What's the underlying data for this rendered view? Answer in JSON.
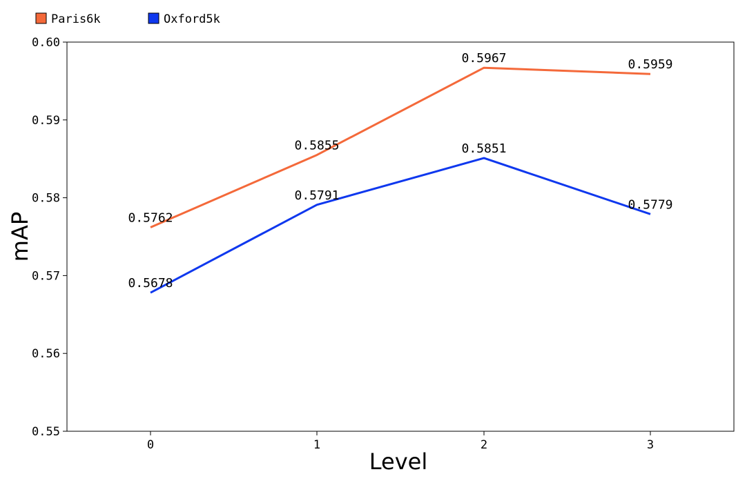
{
  "chart_data": {
    "type": "line",
    "title": "",
    "xlabel": "Level",
    "ylabel": "mAP",
    "categories": [
      "0",
      "1",
      "2",
      "3"
    ],
    "ylim": [
      0.55,
      0.6
    ],
    "yticks": [
      "0.55",
      "0.56",
      "0.57",
      "0.58",
      "0.59",
      "0.60"
    ],
    "grid": false,
    "legend_position": "top-left",
    "series": [
      {
        "name": "Paris6k",
        "color": "#f4693a",
        "values": [
          0.5762,
          0.5855,
          0.5967,
          0.5959
        ],
        "labels": [
          "0.5762",
          "0.5855",
          "0.5967",
          "0.5959"
        ]
      },
      {
        "name": "Oxford5k",
        "color": "#0f38ee",
        "values": [
          0.5678,
          0.5791,
          0.5851,
          0.5779
        ],
        "labels": [
          "0.5678",
          "0.5791",
          "0.5851",
          "0.5779"
        ]
      }
    ]
  }
}
